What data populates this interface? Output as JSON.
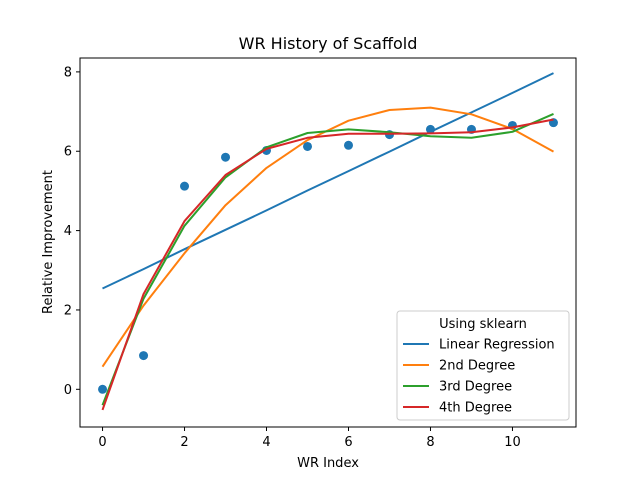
{
  "chart_data": {
    "type": "line",
    "title": "WR History of Scaffold",
    "xlabel": "WR Index",
    "ylabel": "Relative Improvement",
    "xlim": [
      -0.55,
      11.55
    ],
    "ylim": [
      -0.95,
      8.35
    ],
    "x_ticks": [
      0,
      2,
      4,
      6,
      8,
      10
    ],
    "y_ticks": [
      0,
      2,
      4,
      6,
      8
    ],
    "grid": false,
    "legend": {
      "title": "Using sklearn",
      "placement": "lower-right"
    },
    "scatter": {
      "color": "#1f77b4",
      "x": [
        0,
        1,
        2,
        3,
        4,
        5,
        6,
        7,
        8,
        9,
        10,
        11
      ],
      "y": [
        0.0,
        0.85,
        5.12,
        5.85,
        6.02,
        6.12,
        6.15,
        6.42,
        6.55,
        6.55,
        6.65,
        6.72
      ]
    },
    "x": [
      0,
      1,
      2,
      3,
      4,
      5,
      6,
      7,
      8,
      9,
      10,
      11
    ],
    "series": [
      {
        "name": "Linear Regression",
        "color": "#1f77b4",
        "values": [
          2.54,
          3.03,
          3.53,
          4.02,
          4.51,
          5.01,
          5.5,
          5.99,
          6.49,
          6.98,
          7.47,
          7.97
        ]
      },
      {
        "name": "2nd Degree",
        "color": "#ff7f0e",
        "values": [
          0.57,
          2.11,
          3.43,
          4.64,
          5.58,
          6.28,
          6.77,
          7.04,
          7.1,
          6.93,
          6.56,
          5.99
        ]
      },
      {
        "name": "3rd Degree",
        "color": "#2ca02c",
        "values": [
          -0.4,
          2.28,
          4.12,
          5.34,
          6.1,
          6.46,
          6.55,
          6.48,
          6.38,
          6.34,
          6.49,
          6.94
        ]
      },
      {
        "name": "4th Degree",
        "color": "#d62728",
        "values": [
          -0.52,
          2.4,
          4.24,
          5.4,
          6.06,
          6.34,
          6.44,
          6.44,
          6.45,
          6.48,
          6.6,
          6.8
        ]
      }
    ]
  }
}
